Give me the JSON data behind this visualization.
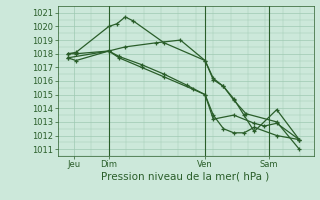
{
  "xlabel": "Pression niveau de la mer( hPa )",
  "ylim": [
    1010.5,
    1021.5
  ],
  "xlim": [
    0.0,
    12.5
  ],
  "yticks": [
    1011,
    1012,
    1013,
    1014,
    1015,
    1016,
    1017,
    1018,
    1019,
    1020,
    1021
  ],
  "xtick_positions": [
    0.8,
    2.5,
    7.2,
    10.3
  ],
  "xtick_labels": [
    "Jeu",
    "Dim",
    "Ven",
    "Sam"
  ],
  "background_color": "#cce8da",
  "grid_color": "#9fc9b2",
  "line_color_hex": "#2a5e2a",
  "vline_positions": [
    2.5,
    7.2,
    10.3
  ],
  "lines": [
    {
      "x": [
        0.5,
        0.9,
        2.5,
        2.9,
        3.3,
        3.7,
        5.2,
        7.2,
        7.6,
        8.1,
        8.6,
        9.1,
        9.6,
        10.7,
        11.8
      ],
      "y": [
        1018.0,
        1018.1,
        1020.0,
        1020.2,
        1020.7,
        1020.4,
        1018.8,
        1017.5,
        1016.1,
        1015.6,
        1014.7,
        1013.5,
        1012.3,
        1013.9,
        1011.7
      ]
    },
    {
      "x": [
        0.5,
        2.5,
        3.3,
        4.8,
        6.0,
        7.2,
        7.6,
        8.1,
        8.6,
        9.2,
        10.7,
        11.8
      ],
      "y": [
        1017.7,
        1018.2,
        1018.5,
        1018.8,
        1019.0,
        1017.5,
        1016.2,
        1015.6,
        1014.6,
        1013.6,
        1013.0,
        1011.0
      ]
    },
    {
      "x": [
        0.5,
        0.9,
        2.5,
        3.0,
        4.1,
        5.2,
        6.3,
        7.2,
        7.6,
        8.1,
        8.6,
        9.1,
        9.6,
        10.7,
        11.8
      ],
      "y": [
        1017.7,
        1017.5,
        1018.2,
        1017.8,
        1017.2,
        1016.5,
        1015.7,
        1015.0,
        1013.5,
        1012.5,
        1012.2,
        1012.2,
        1012.6,
        1012.0,
        1011.7
      ]
    },
    {
      "x": [
        0.5,
        0.9,
        2.5,
        3.0,
        4.1,
        5.2,
        6.6,
        7.2,
        7.6,
        8.6,
        9.6,
        10.1,
        10.7,
        11.8
      ],
      "y": [
        1018.0,
        1018.0,
        1018.2,
        1017.7,
        1017.0,
        1016.3,
        1015.4,
        1015.0,
        1013.2,
        1013.5,
        1012.9,
        1012.7,
        1012.9,
        1011.7
      ]
    }
  ],
  "marker": "+",
  "markersize": 3.5,
  "linewidth": 0.9,
  "font_size_ticks": 6,
  "font_size_xlabel": 7.5
}
